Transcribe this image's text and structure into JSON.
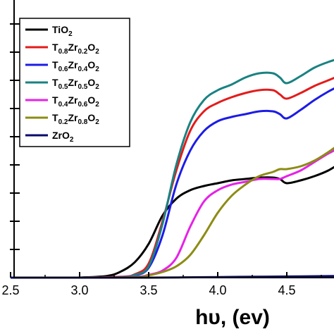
{
  "chart_data": {
    "type": "line",
    "xlabel": "hυ, (ev)",
    "ylabel": "",
    "xlim": [
      2.5,
      4.9
    ],
    "ylim": [
      0,
      1.0
    ],
    "x_ticks": [
      "2.5",
      "3.0",
      "3.5",
      "4.0",
      "4.5"
    ],
    "x_tick_values": [
      2.5,
      3.0,
      3.5,
      4.0,
      4.5
    ],
    "y_tick_values": [
      0.1,
      0.2,
      0.3,
      0.4,
      0.5,
      0.6,
      0.7,
      0.8,
      0.9
    ],
    "legend_position": "top-left",
    "series": [
      {
        "name": "TiO2",
        "legend": {
          "base": "TiO",
          "sub": "2"
        },
        "color": "#000000",
        "x": [
          3.0,
          3.2,
          3.3,
          3.4,
          3.5,
          3.6,
          3.7,
          3.8,
          3.9,
          4.0,
          4.1,
          4.2,
          4.3,
          4.4,
          4.45,
          4.5,
          4.6,
          4.7,
          4.8,
          4.9
        ],
        "y": [
          0.0,
          0.006,
          0.022,
          0.055,
          0.12,
          0.22,
          0.28,
          0.31,
          0.325,
          0.335,
          0.345,
          0.35,
          0.355,
          0.355,
          0.35,
          0.335,
          0.345,
          0.36,
          0.38,
          0.41
        ]
      },
      {
        "name": "T0.8Zr0.2O2",
        "legend": {
          "base": "T",
          "sub": "0.8",
          "base2": "Zr",
          "sub2": "0.2",
          "base3": "O",
          "sub3": "2"
        },
        "color": "#e41b1b",
        "x": [
          3.0,
          3.3,
          3.4,
          3.5,
          3.6,
          3.7,
          3.8,
          3.9,
          4.0,
          4.1,
          4.2,
          4.3,
          4.4,
          4.45,
          4.5,
          4.6,
          4.7,
          4.8,
          4.9
        ],
        "y": [
          0.0,
          0.003,
          0.012,
          0.05,
          0.2,
          0.38,
          0.52,
          0.59,
          0.62,
          0.64,
          0.655,
          0.665,
          0.665,
          0.65,
          0.635,
          0.655,
          0.68,
          0.7,
          0.72
        ]
      },
      {
        "name": "T0.6Zr0.4O2",
        "legend": {
          "base": "T",
          "sub": "0.6",
          "base2": "Zr",
          "sub2": "0.4",
          "base3": "O",
          "sub3": "2"
        },
        "color": "#1c1ce6",
        "x": [
          3.0,
          3.3,
          3.4,
          3.5,
          3.6,
          3.7,
          3.8,
          3.9,
          4.0,
          4.1,
          4.2,
          4.3,
          4.4,
          4.45,
          4.5,
          4.6,
          4.7,
          4.8,
          4.9
        ],
        "y": [
          0.0,
          0.002,
          0.008,
          0.035,
          0.15,
          0.33,
          0.45,
          0.52,
          0.555,
          0.57,
          0.58,
          0.59,
          0.59,
          0.58,
          0.565,
          0.595,
          0.63,
          0.66,
          0.685
        ]
      },
      {
        "name": "T0.5Zr0.5O2",
        "legend": {
          "base": "T",
          "sub": "0.5",
          "base2": "Zr",
          "sub2": "0.5",
          "base3": "O",
          "sub3": "2"
        },
        "color": "#1a8282",
        "x": [
          3.0,
          3.3,
          3.4,
          3.5,
          3.6,
          3.7,
          3.8,
          3.9,
          4.0,
          4.1,
          4.2,
          4.3,
          4.4,
          4.45,
          4.5,
          4.6,
          4.7,
          4.8,
          4.9
        ],
        "y": [
          0.0,
          0.002,
          0.01,
          0.04,
          0.19,
          0.4,
          0.55,
          0.63,
          0.665,
          0.685,
          0.71,
          0.725,
          0.725,
          0.71,
          0.69,
          0.715,
          0.745,
          0.765,
          0.78
        ]
      },
      {
        "name": "T0.4Zr0.6O2",
        "legend": {
          "base": "T",
          "sub": "0.4",
          "base2": "Zr",
          "sub2": "0.6",
          "base3": "O",
          "sub3": "2"
        },
        "color": "#e622e6",
        "x": [
          3.0,
          3.4,
          3.5,
          3.6,
          3.7,
          3.8,
          3.9,
          4.0,
          4.1,
          4.2,
          4.3,
          4.4,
          4.45,
          4.5,
          4.6,
          4.7,
          4.8,
          4.9
        ],
        "y": [
          0.0,
          0.003,
          0.01,
          0.025,
          0.07,
          0.18,
          0.27,
          0.31,
          0.33,
          0.34,
          0.35,
          0.35,
          0.35,
          0.36,
          0.38,
          0.41,
          0.44,
          0.465
        ]
      },
      {
        "name": "T0.2Zr0.8O2",
        "legend": {
          "base": "T",
          "sub": "0.2",
          "base2": "Zr",
          "sub2": "0.8",
          "base3": "O",
          "sub3": "2"
        },
        "color": "#8c8c14",
        "x": [
          3.0,
          3.4,
          3.5,
          3.6,
          3.7,
          3.8,
          3.9,
          4.0,
          4.1,
          4.2,
          4.3,
          4.4,
          4.45,
          4.5,
          4.6,
          4.7,
          4.8,
          4.9
        ],
        "y": [
          0.0,
          0.002,
          0.008,
          0.02,
          0.04,
          0.08,
          0.15,
          0.23,
          0.29,
          0.33,
          0.36,
          0.375,
          0.385,
          0.385,
          0.395,
          0.415,
          0.445,
          0.48
        ]
      },
      {
        "name": "ZrO2",
        "legend": {
          "base": "ZrO",
          "sub": "2"
        },
        "color": "#0a0a6e",
        "x": [
          2.5,
          3.0,
          3.5,
          4.0,
          4.5,
          4.9
        ],
        "y": [
          0.0,
          0.0,
          0.0,
          0.002,
          0.004,
          0.006
        ]
      }
    ]
  }
}
